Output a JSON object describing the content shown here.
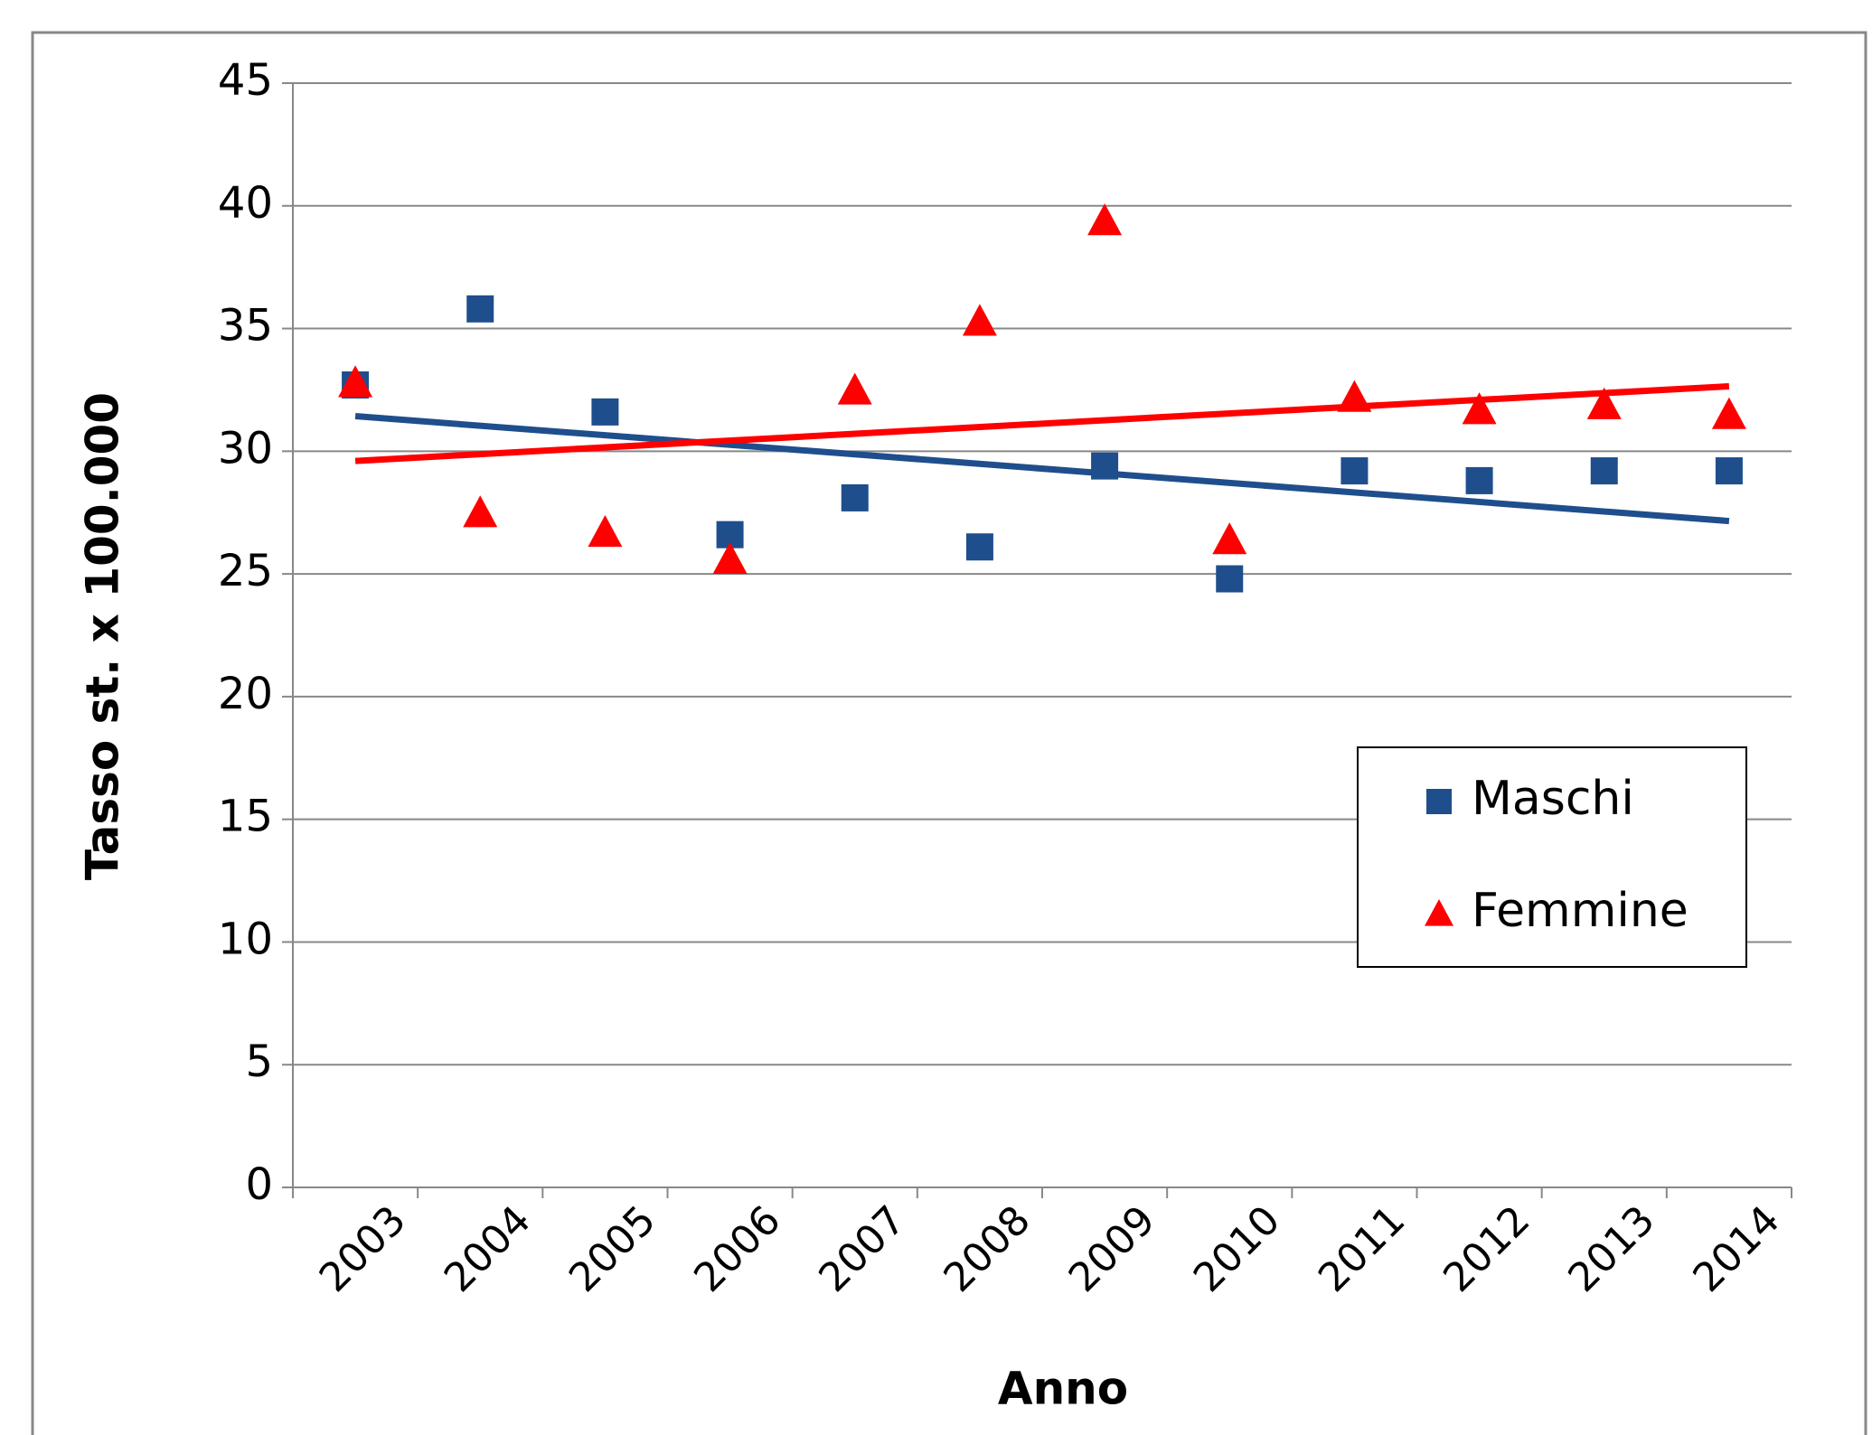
{
  "chart_data": {
    "type": "scatter",
    "x_label": "Anno",
    "y_label": "Tasso st. x 100.000",
    "categories": [
      "2003",
      "2004",
      "2005",
      "2006",
      "2007",
      "2008",
      "2009",
      "2010",
      "2011",
      "2012",
      "2013",
      "2014"
    ],
    "series": [
      {
        "name": "Maschi",
        "color": "#1f4e8c",
        "marker": "square",
        "trendline": true,
        "values": [
          32.7,
          35.8,
          31.6,
          26.6,
          28.1,
          26.1,
          29.4,
          24.8,
          29.2,
          28.8,
          29.2,
          29.2
        ]
      },
      {
        "name": "Femmine",
        "color": "#ff0000",
        "marker": "triangle",
        "trendline": true,
        "values": [
          32.8,
          27.5,
          26.7,
          25.6,
          32.5,
          35.3,
          39.4,
          26.4,
          32.2,
          31.7,
          31.9,
          31.5
        ]
      }
    ],
    "ylim": [
      0,
      45
    ],
    "yticks": [
      0,
      5,
      10,
      15,
      20,
      25,
      30,
      35,
      40,
      45
    ],
    "grid": true,
    "legend": "lower right"
  }
}
